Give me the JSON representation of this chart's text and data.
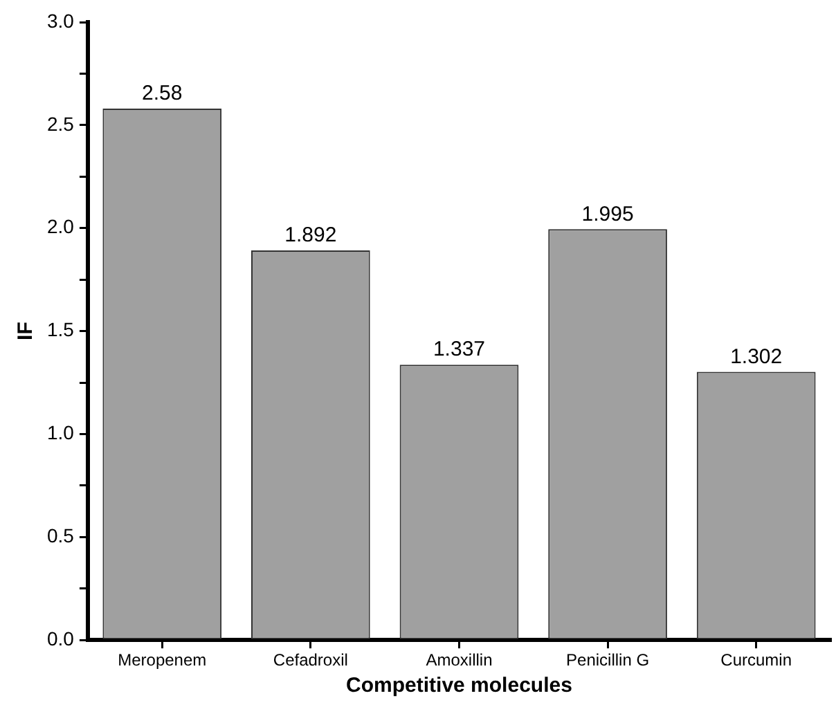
{
  "chart_data": {
    "type": "bar",
    "xlabel": "Competitive molecules",
    "ylabel": "IF",
    "categories": [
      "Meropenem",
      "Cefadroxil",
      "Amoxillin",
      "Penicillin G",
      "Curcumin"
    ],
    "values": [
      2.58,
      1.892,
      1.337,
      1.995,
      1.302
    ],
    "color": "#a0a0a0",
    "ylim": [
      0,
      3
    ],
    "yticks": [
      {
        "value": 0,
        "label": "0.0"
      },
      {
        "value": 0.25,
        "label": null
      },
      0.5,
      {
        "value": 0.75,
        "label": null
      },
      {
        "value": 1,
        "label": "1.0"
      },
      {
        "value": 1.25,
        "label": null
      },
      1.5,
      {
        "value": 1.75,
        "label": null
      },
      {
        "value": 2,
        "label": "2.0"
      },
      {
        "value": 2.25,
        "label": null
      },
      2.5,
      {
        "value": 2.75,
        "label": null
      },
      {
        "value": 3,
        "label": "3.0"
      }
    ],
    "grid": false,
    "legend": false,
    "data_labels": true
  }
}
